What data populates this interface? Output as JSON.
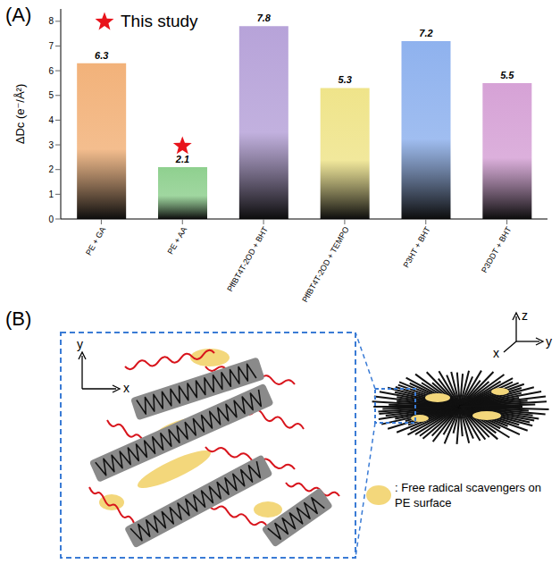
{
  "chart_data": {
    "type": "bar",
    "panel_label": "(A)",
    "categories": [
      "PE + GA",
      "PE + AA",
      "PffBT4T-2OD + BHT",
      "PffBT4T-2OD + TEMPO",
      "P3HT + BHT",
      "P3DDT + BHT"
    ],
    "values": [
      6.3,
      2.1,
      7.8,
      5.3,
      7.2,
      5.5
    ],
    "colors": [
      "#f2b27a",
      "#8fd08f",
      "#b7a3d9",
      "#efe48a",
      "#8fb2ee",
      "#d6a2d6"
    ],
    "y_label": "ΔDc (e⁻/Å²)",
    "ylim": [
      0,
      8.5
    ],
    "yticks": [
      0,
      1,
      2,
      3,
      4,
      5,
      6,
      7,
      8
    ],
    "data_labels": true,
    "grid": false,
    "annotation": {
      "text": "This study",
      "marker": "star",
      "color": "#e8141c",
      "category": "PE + AA",
      "value": 2.95
    }
  },
  "diagram": {
    "panel_label": "(B)",
    "inset_axes": [
      "y",
      "x"
    ],
    "main_axes": [
      "z",
      "x",
      "y"
    ],
    "legend_text": ": Free radical scavengers on PE surface"
  }
}
